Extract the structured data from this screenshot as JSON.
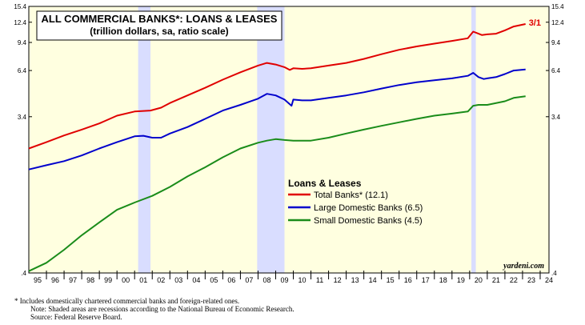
{
  "chart_data": {
    "type": "line",
    "title": "ALL COMMERCIAL BANKS*: LOANS & LEASES",
    "subtitle": "(trillion dollars, sa, ratio scale)",
    "y_scale": "log",
    "ylim": [
      0.4,
      15.4
    ],
    "y_ticks": [
      {
        "value": 15.4,
        "label": "15.4"
      },
      {
        "value": 12.4,
        "label": "12.4"
      },
      {
        "value": 9.4,
        "label": "9.4"
      },
      {
        "value": 6.4,
        "label": "6.4"
      },
      {
        "value": 3.4,
        "label": "3.4"
      },
      {
        "value": 0.4,
        "label": ".4"
      }
    ],
    "xlim": [
      1995,
      2024.5
    ],
    "x_ticks": [
      "95",
      "96",
      "97",
      "98",
      "99",
      "00",
      "01",
      "02",
      "03",
      "04",
      "05",
      "06",
      "07",
      "08",
      "09",
      "10",
      "11",
      "12",
      "13",
      "14",
      "15",
      "16",
      "17",
      "18",
      "19",
      "20",
      "21",
      "22",
      "23",
      "24"
    ],
    "recessions": [
      [
        2001.2,
        2001.9
      ],
      [
        2007.95,
        2009.5
      ],
      [
        2020.1,
        2020.35
      ]
    ],
    "legend_title": "Loans & Leases",
    "legend_position": "center-right",
    "annotation": {
      "text": "3/1",
      "color": "#e00000"
    },
    "credit": "yardeni.com",
    "series": [
      {
        "name": "Total Banks* (12.1)",
        "color": "#e00000",
        "x": [
          1995.0,
          1996.0,
          1997.0,
          1998.0,
          1999.0,
          2000.0,
          2001.0,
          2001.9,
          2002.5,
          2003.0,
          2004.0,
          2005.0,
          2006.0,
          2007.0,
          2008.0,
          2008.5,
          2009.0,
          2009.5,
          2009.8,
          2010.0,
          2010.5,
          2011.0,
          2012.0,
          2013.0,
          2014.0,
          2015.0,
          2016.0,
          2017.0,
          2018.0,
          2019.0,
          2019.9,
          2020.2,
          2020.4,
          2020.7,
          2021.0,
          2021.5,
          2022.0,
          2022.5,
          2023.17
        ],
        "y": [
          2.2,
          2.4,
          2.63,
          2.85,
          3.1,
          3.45,
          3.65,
          3.7,
          3.85,
          4.1,
          4.55,
          5.05,
          5.65,
          6.25,
          6.85,
          7.1,
          6.95,
          6.7,
          6.45,
          6.6,
          6.55,
          6.6,
          6.85,
          7.1,
          7.5,
          8.0,
          8.5,
          8.9,
          9.25,
          9.6,
          9.95,
          10.9,
          10.7,
          10.4,
          10.5,
          10.6,
          11.1,
          11.7,
          12.1
        ]
      },
      {
        "name": "Large Domestic Banks (6.5)",
        "color": "#0000cc",
        "x": [
          1995.0,
          1996.0,
          1997.0,
          1998.0,
          1999.0,
          2000.0,
          2001.0,
          2001.5,
          2002.0,
          2002.5,
          2003.0,
          2004.0,
          2005.0,
          2006.0,
          2007.0,
          2008.0,
          2008.5,
          2009.0,
          2009.5,
          2009.9,
          2010.0,
          2010.5,
          2011.0,
          2012.0,
          2013.0,
          2014.0,
          2015.0,
          2016.0,
          2017.0,
          2018.0,
          2019.0,
          2019.9,
          2020.2,
          2020.5,
          2020.8,
          2021.0,
          2021.5,
          2022.0,
          2022.5,
          2023.17
        ],
        "y": [
          1.65,
          1.75,
          1.85,
          2.0,
          2.2,
          2.4,
          2.6,
          2.62,
          2.55,
          2.55,
          2.7,
          2.95,
          3.3,
          3.7,
          4.0,
          4.35,
          4.65,
          4.55,
          4.3,
          3.95,
          4.3,
          4.25,
          4.25,
          4.4,
          4.55,
          4.75,
          5.0,
          5.25,
          5.45,
          5.6,
          5.75,
          5.95,
          6.2,
          5.85,
          5.7,
          5.75,
          5.85,
          6.1,
          6.4,
          6.5
        ]
      },
      {
        "name": "Small Domestic Banks (4.5)",
        "color": "#1a8c1a",
        "x": [
          1995.0,
          1996.0,
          1997.0,
          1998.0,
          1999.0,
          2000.0,
          2001.0,
          2002.0,
          2003.0,
          2004.0,
          2005.0,
          2006.0,
          2007.0,
          2008.0,
          2008.5,
          2009.0,
          2009.5,
          2010.0,
          2011.0,
          2012.0,
          2013.0,
          2014.0,
          2015.0,
          2016.0,
          2017.0,
          2018.0,
          2019.0,
          2019.9,
          2020.2,
          2020.5,
          2021.0,
          2022.0,
          2022.5,
          2023.17
        ],
        "y": [
          0.41,
          0.46,
          0.55,
          0.67,
          0.8,
          0.95,
          1.05,
          1.15,
          1.3,
          1.5,
          1.7,
          1.95,
          2.2,
          2.38,
          2.45,
          2.5,
          2.47,
          2.45,
          2.45,
          2.55,
          2.7,
          2.85,
          3.0,
          3.15,
          3.3,
          3.45,
          3.55,
          3.65,
          3.95,
          4.0,
          4.0,
          4.2,
          4.4,
          4.5
        ]
      }
    ]
  },
  "footnotes": {
    "note1": "*  Includes domestically chartered commercial banks and foreign-related ones.",
    "note2": "Note: Shaded areas are recessions according to the National Bureau of Economic Research.",
    "note3": "Source: Federal Reserve Board."
  }
}
